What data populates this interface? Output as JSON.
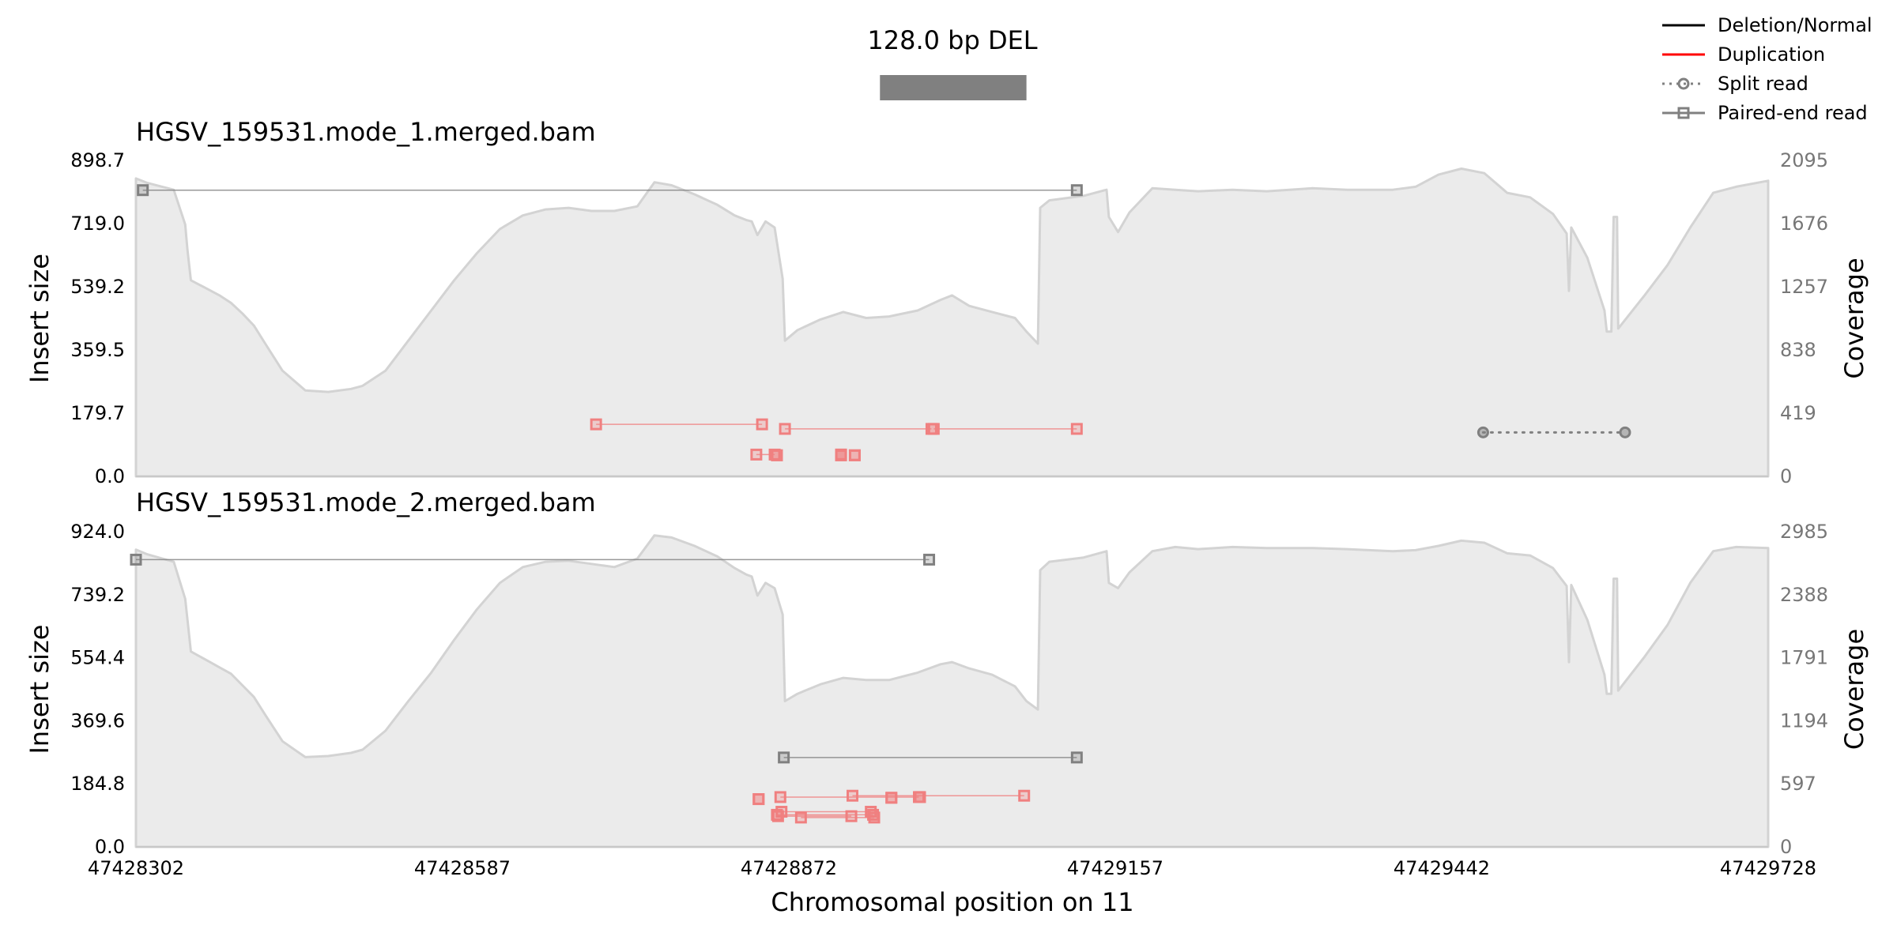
{
  "chart_data": {
    "type": "line",
    "title": "128.0 bp DEL",
    "xlabel": "Chromosomal position on 11",
    "x_range": [
      47428302,
      47429728
    ],
    "x_ticks": [
      "47428302",
      "47428587",
      "47428872",
      "47429157",
      "47429442",
      "47429728"
    ],
    "sv_bar": {
      "start": 47428952,
      "end": 47429080,
      "color": "#808080"
    },
    "legend": {
      "placement": "top-right",
      "entries": [
        {
          "label": "Deletion/Normal",
          "color": "#000000",
          "style": "solid"
        },
        {
          "label": "Duplication",
          "color": "#ff0000",
          "style": "solid"
        },
        {
          "label": "Split read",
          "color": "#808080",
          "style": "dotted-circle"
        },
        {
          "label": "Paired-end read",
          "color": "#808080",
          "style": "solid-square"
        }
      ]
    },
    "colors": {
      "normal": "#808080",
      "duplication": "#f08080",
      "coverage_fill": "#ebebeb",
      "coverage_line": "#d3d3d3"
    },
    "panels": [
      {
        "title": "HGSV_159531.mode_1.merged.bam",
        "ylabel_left": "Insert size",
        "ylabel_right": "Coverage",
        "y_max": 898.7,
        "cov_max": 2095,
        "y_ticks": [
          "0.0",
          "179.7",
          "359.5",
          "539.2",
          "719.0",
          "898.7"
        ],
        "cov_ticks": [
          "0",
          "419",
          "838",
          "1257",
          "1676",
          "2095"
        ],
        "coverage": [
          [
            47428302,
            1975
          ],
          [
            47428312,
            1945
          ],
          [
            47428325,
            1920
          ],
          [
            47428335,
            1900
          ],
          [
            47428345,
            1670
          ],
          [
            47428347,
            1500
          ],
          [
            47428350,
            1300
          ],
          [
            47428365,
            1240
          ],
          [
            47428375,
            1200
          ],
          [
            47428385,
            1150
          ],
          [
            47428395,
            1080
          ],
          [
            47428405,
            1000
          ],
          [
            47428415,
            880
          ],
          [
            47428430,
            700
          ],
          [
            47428450,
            570
          ],
          [
            47428470,
            560
          ],
          [
            47428490,
            580
          ],
          [
            47428500,
            600
          ],
          [
            47428520,
            700
          ],
          [
            47428540,
            900
          ],
          [
            47428560,
            1100
          ],
          [
            47428580,
            1300
          ],
          [
            47428600,
            1480
          ],
          [
            47428620,
            1640
          ],
          [
            47428640,
            1730
          ],
          [
            47428660,
            1770
          ],
          [
            47428680,
            1780
          ],
          [
            47428700,
            1760
          ],
          [
            47428720,
            1760
          ],
          [
            47428740,
            1790
          ],
          [
            47428755,
            1950
          ],
          [
            47428770,
            1930
          ],
          [
            47428790,
            1870
          ],
          [
            47428810,
            1800
          ],
          [
            47428825,
            1730
          ],
          [
            47428835,
            1700
          ],
          [
            47428840,
            1690
          ],
          [
            47428845,
            1600
          ],
          [
            47428852,
            1690
          ],
          [
            47428860,
            1650
          ],
          [
            47428867,
            1310
          ],
          [
            47428869,
            900
          ],
          [
            47428880,
            970
          ],
          [
            47428900,
            1040
          ],
          [
            47428920,
            1090
          ],
          [
            47428940,
            1050
          ],
          [
            47428960,
            1060
          ],
          [
            47428985,
            1100
          ],
          [
            47429005,
            1170
          ],
          [
            47429015,
            1200
          ],
          [
            47429030,
            1130
          ],
          [
            47429050,
            1090
          ],
          [
            47429070,
            1050
          ],
          [
            47429080,
            960
          ],
          [
            47429090,
            880
          ],
          [
            47429092,
            1780
          ],
          [
            47429100,
            1830
          ],
          [
            47429130,
            1860
          ],
          [
            47429150,
            1900
          ],
          [
            47429152,
            1720
          ],
          [
            47429160,
            1620
          ],
          [
            47429170,
            1750
          ],
          [
            47429190,
            1910
          ],
          [
            47429210,
            1900
          ],
          [
            47429230,
            1890
          ],
          [
            47429260,
            1900
          ],
          [
            47429290,
            1890
          ],
          [
            47429330,
            1910
          ],
          [
            47429360,
            1900
          ],
          [
            47429400,
            1900
          ],
          [
            47429420,
            1920
          ],
          [
            47429440,
            2000
          ],
          [
            47429460,
            2040
          ],
          [
            47429480,
            2010
          ],
          [
            47429500,
            1880
          ],
          [
            47429520,
            1850
          ],
          [
            47429540,
            1740
          ],
          [
            47429552,
            1610
          ],
          [
            47429554,
            1230
          ],
          [
            47429556,
            1650
          ],
          [
            47429570,
            1450
          ],
          [
            47429585,
            1100
          ],
          [
            47429587,
            960
          ],
          [
            47429591,
            960
          ],
          [
            47429593,
            1720
          ],
          [
            47429596,
            1720
          ],
          [
            47429597,
            980
          ],
          [
            47429620,
            1200
          ],
          [
            47429640,
            1400
          ],
          [
            47429660,
            1650
          ],
          [
            47429680,
            1880
          ],
          [
            47429700,
            1920
          ],
          [
            47429728,
            1960
          ]
        ],
        "reads": [
          {
            "kind": "paired",
            "type": "normal",
            "x1": 47428308,
            "x2": 47429124,
            "y": 814
          },
          {
            "kind": "paired",
            "type": "dup",
            "x1": 47428704,
            "x2": 47428849,
            "y": 148
          },
          {
            "kind": "paired",
            "type": "dup",
            "x1": 47428869,
            "x2": 47428997,
            "y": 135
          },
          {
            "kind": "paired",
            "type": "dup",
            "x1": 47428999,
            "x2": 47429124,
            "y": 135
          },
          {
            "kind": "paired",
            "type": "dup",
            "x1": 47428844,
            "x2": 47428860,
            "y": 62
          },
          {
            "kind": "paired",
            "type": "dup",
            "x1": 47428918,
            "x2": 47428918,
            "y": 62
          },
          {
            "kind": "paired",
            "type": "dup",
            "x1": 47428862,
            "x2": 47428862,
            "y": 60
          },
          {
            "kind": "paired",
            "type": "dup",
            "x1": 47428918,
            "x2": 47428918,
            "y": 60
          },
          {
            "kind": "paired",
            "type": "dup",
            "x1": 47428930,
            "x2": 47428930,
            "y": 60
          },
          {
            "kind": "split",
            "type": "normal",
            "x1": 47429479,
            "x2": 47429603,
            "y": 125
          }
        ]
      },
      {
        "title": "HGSV_159531.mode_2.merged.bam",
        "ylabel_left": "Insert size",
        "ylabel_right": "Coverage",
        "y_max": 924.0,
        "cov_max": 2985,
        "y_ticks": [
          "0.0",
          "184.8",
          "369.6",
          "554.4",
          "739.2",
          "924.0"
        ],
        "cov_ticks": [
          "0",
          "597",
          "1194",
          "1791",
          "2388",
          "2985"
        ],
        "coverage": [
          [
            47428302,
            2815
          ],
          [
            47428312,
            2770
          ],
          [
            47428325,
            2730
          ],
          [
            47428335,
            2700
          ],
          [
            47428345,
            2350
          ],
          [
            47428347,
            2150
          ],
          [
            47428350,
            1850
          ],
          [
            47428365,
            1760
          ],
          [
            47428375,
            1700
          ],
          [
            47428385,
            1640
          ],
          [
            47428395,
            1530
          ],
          [
            47428405,
            1420
          ],
          [
            47428415,
            1250
          ],
          [
            47428430,
            1000
          ],
          [
            47428450,
            850
          ],
          [
            47428470,
            860
          ],
          [
            47428490,
            890
          ],
          [
            47428500,
            920
          ],
          [
            47428520,
            1100
          ],
          [
            47428540,
            1380
          ],
          [
            47428560,
            1650
          ],
          [
            47428580,
            1960
          ],
          [
            47428600,
            2250
          ],
          [
            47428620,
            2500
          ],
          [
            47428640,
            2650
          ],
          [
            47428660,
            2700
          ],
          [
            47428680,
            2710
          ],
          [
            47428700,
            2680
          ],
          [
            47428720,
            2650
          ],
          [
            47428740,
            2730
          ],
          [
            47428755,
            2950
          ],
          [
            47428770,
            2930
          ],
          [
            47428790,
            2850
          ],
          [
            47428810,
            2750
          ],
          [
            47428825,
            2640
          ],
          [
            47428835,
            2580
          ],
          [
            47428840,
            2560
          ],
          [
            47428845,
            2380
          ],
          [
            47428852,
            2500
          ],
          [
            47428860,
            2450
          ],
          [
            47428867,
            2200
          ],
          [
            47428869,
            1380
          ],
          [
            47428880,
            1450
          ],
          [
            47428900,
            1540
          ],
          [
            47428920,
            1600
          ],
          [
            47428940,
            1580
          ],
          [
            47428960,
            1580
          ],
          [
            47428985,
            1650
          ],
          [
            47429005,
            1730
          ],
          [
            47429015,
            1750
          ],
          [
            47429030,
            1690
          ],
          [
            47429050,
            1630
          ],
          [
            47429070,
            1520
          ],
          [
            47429080,
            1380
          ],
          [
            47429090,
            1300
          ],
          [
            47429092,
            2620
          ],
          [
            47429100,
            2700
          ],
          [
            47429130,
            2740
          ],
          [
            47429150,
            2800
          ],
          [
            47429152,
            2500
          ],
          [
            47429160,
            2450
          ],
          [
            47429170,
            2600
          ],
          [
            47429190,
            2800
          ],
          [
            47429210,
            2840
          ],
          [
            47429230,
            2820
          ],
          [
            47429260,
            2840
          ],
          [
            47429290,
            2830
          ],
          [
            47429330,
            2830
          ],
          [
            47429360,
            2820
          ],
          [
            47429400,
            2800
          ],
          [
            47429420,
            2810
          ],
          [
            47429440,
            2850
          ],
          [
            47429460,
            2900
          ],
          [
            47429480,
            2880
          ],
          [
            47429500,
            2780
          ],
          [
            47429520,
            2760
          ],
          [
            47429540,
            2640
          ],
          [
            47429552,
            2470
          ],
          [
            47429554,
            1750
          ],
          [
            47429556,
            2480
          ],
          [
            47429570,
            2150
          ],
          [
            47429585,
            1630
          ],
          [
            47429587,
            1450
          ],
          [
            47429591,
            1450
          ],
          [
            47429593,
            2540
          ],
          [
            47429596,
            2540
          ],
          [
            47429597,
            1480
          ],
          [
            47429620,
            1800
          ],
          [
            47429640,
            2100
          ],
          [
            47429660,
            2500
          ],
          [
            47429680,
            2800
          ],
          [
            47429700,
            2840
          ],
          [
            47429728,
            2830
          ]
        ],
        "reads": [
          {
            "kind": "paired",
            "type": "normal",
            "x1": 47428302,
            "x2": 47428995,
            "y": 842
          },
          {
            "kind": "paired",
            "type": "normal",
            "x1": 47428868,
            "x2": 47429124,
            "y": 262
          },
          {
            "kind": "paired",
            "type": "dup",
            "x1": 47428846,
            "x2": 47428846,
            "y": 140
          },
          {
            "kind": "paired",
            "type": "dup",
            "x1": 47428865,
            "x2": 47428986,
            "y": 146
          },
          {
            "kind": "paired",
            "type": "dup",
            "x1": 47428928,
            "x2": 47429078,
            "y": 150
          },
          {
            "kind": "paired",
            "type": "dup",
            "x1": 47428962,
            "x2": 47428962,
            "y": 144
          },
          {
            "kind": "paired",
            "type": "dup",
            "x1": 47428987,
            "x2": 47428987,
            "y": 146
          },
          {
            "kind": "paired",
            "type": "dup",
            "x1": 47428866,
            "x2": 47428944,
            "y": 103
          },
          {
            "kind": "paired",
            "type": "dup",
            "x1": 47428862,
            "x2": 47428946,
            "y": 94
          },
          {
            "kind": "paired",
            "type": "dup",
            "x1": 47428863,
            "x2": 47428927,
            "y": 90
          },
          {
            "kind": "paired",
            "type": "dup",
            "x1": 47428883,
            "x2": 47428947,
            "y": 86
          }
        ]
      }
    ]
  }
}
